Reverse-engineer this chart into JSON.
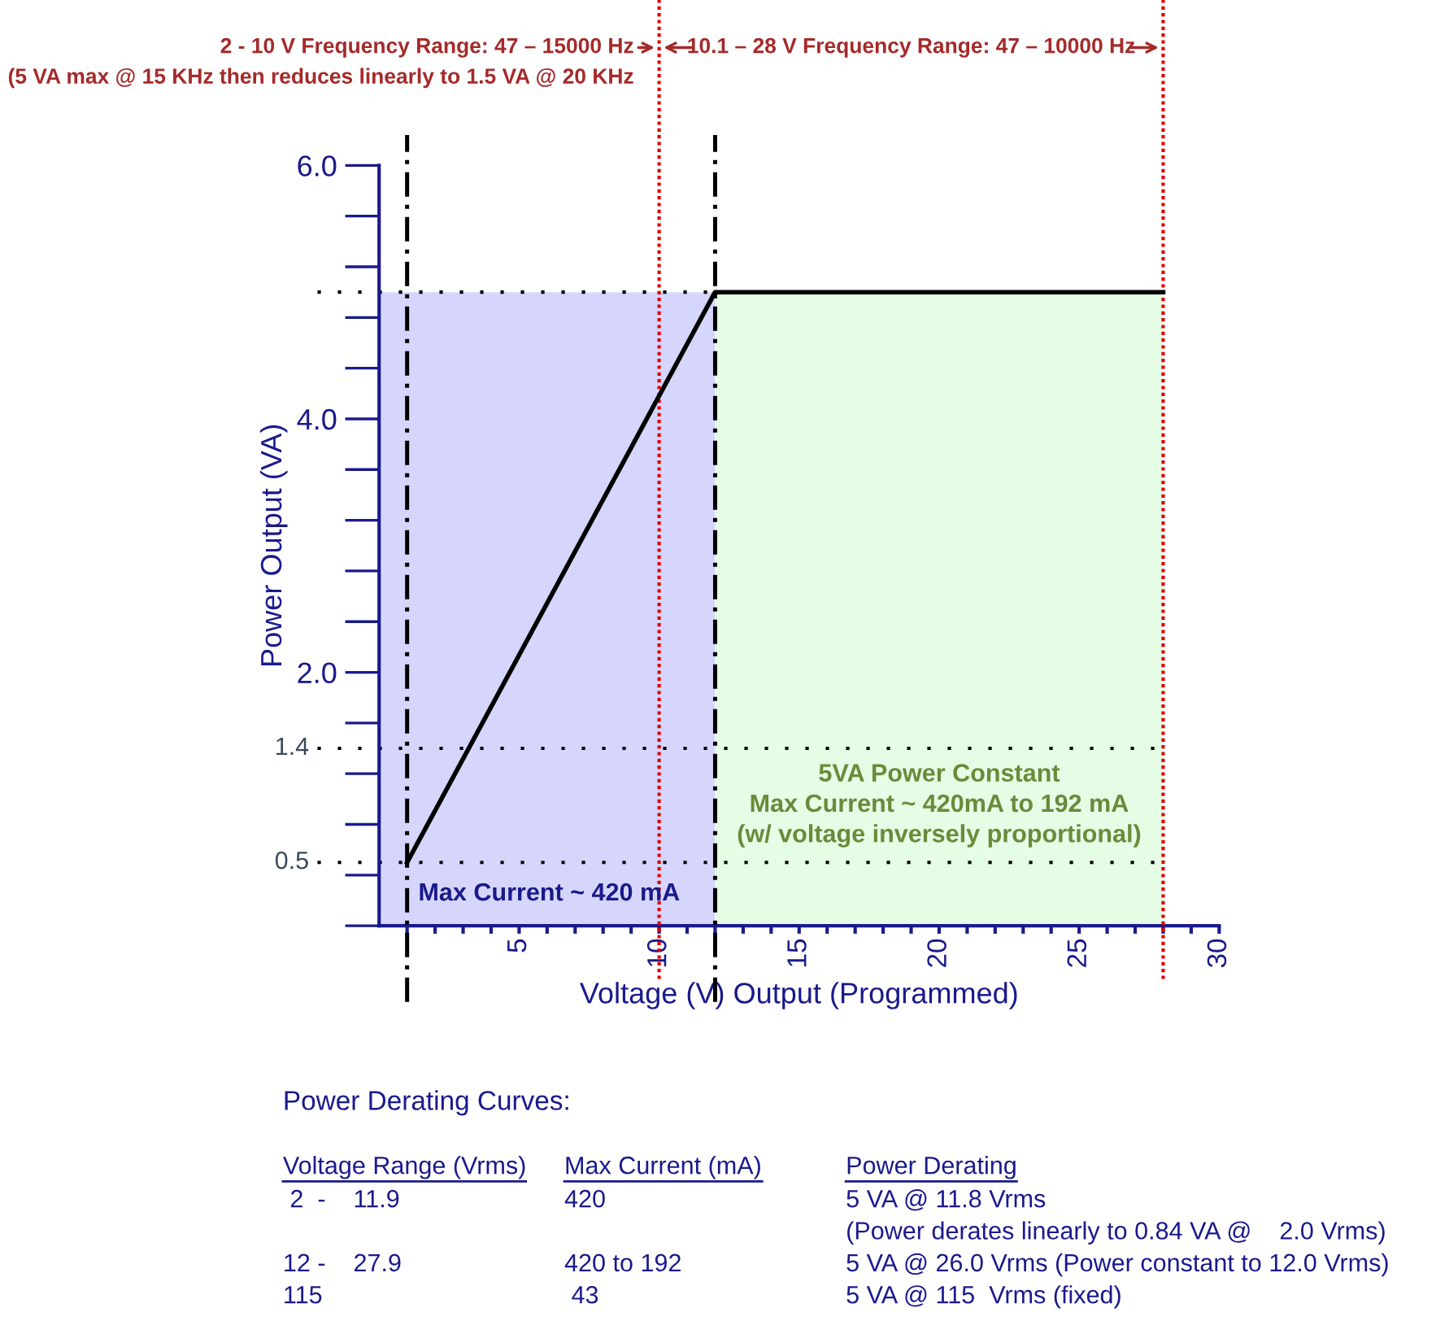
{
  "chart_data": {
    "type": "line",
    "xlabel": "Voltage (V) Output (Programmed)",
    "ylabel": "Power Output (VA)",
    "x": [
      1,
      12,
      28
    ],
    "series": [
      {
        "color": "#000000",
        "values": [
          0.5,
          5.0,
          5.0
        ]
      }
    ],
    "xlim": [
      0,
      30
    ],
    "xticks": [
      {
        "value": 1,
        "label": null
      },
      {
        "value": 2,
        "label": null
      },
      {
        "value": 3,
        "label": null
      },
      {
        "value": 4,
        "label": null
      },
      5,
      {
        "value": 6,
        "label": null
      },
      {
        "value": 7,
        "label": null
      },
      {
        "value": 8,
        "label": null
      },
      {
        "value": 9,
        "label": null
      },
      10,
      {
        "value": 11,
        "label": null
      },
      {
        "value": 12,
        "label": null
      },
      {
        "value": 13,
        "label": null
      },
      {
        "value": 14,
        "label": null
      },
      15,
      {
        "value": 16,
        "label": null
      },
      {
        "value": 17,
        "label": null
      },
      {
        "value": 18,
        "label": null
      },
      {
        "value": 19,
        "label": null
      },
      20,
      {
        "value": 21,
        "label": null
      },
      {
        "value": 22,
        "label": null
      },
      {
        "value": 23,
        "label": null
      },
      {
        "value": 24,
        "label": null
      },
      25,
      {
        "value": 26,
        "label": null
      },
      {
        "value": 27,
        "label": null
      },
      {
        "value": 28,
        "label": null
      },
      {
        "value": 29,
        "label": null
      },
      30
    ],
    "ylim": [
      0,
      6
    ],
    "yticks": [
      {
        "value": 2,
        "label": "2.0"
      },
      {
        "value": 4,
        "label": "4.0"
      },
      {
        "value": 6,
        "label": "6.0"
      }
    ],
    "bands": [
      {
        "axis": "x",
        "from": 0,
        "to": 12,
        "color": "#d6d6fc"
      },
      {
        "axis": "x",
        "from": 12,
        "to": 28,
        "color": "#e5fce5"
      }
    ],
    "ref_lines": [
      {
        "axis": "y",
        "value": 5,
        "color": "#000000",
        "line_style": "dotted"
      },
      {
        "axis": "y",
        "value": 1.4,
        "color": "#000000",
        "line_style": "dotted",
        "label": "1.4"
      },
      {
        "axis": "y",
        "value": 0.5,
        "color": "#000000",
        "line_style": "dotted",
        "label": "0.5"
      },
      {
        "axis": "x",
        "value": 1,
        "color": "#000000",
        "line_style": "dashdot"
      },
      {
        "axis": "x",
        "value": 12,
        "color": "#000000",
        "line_style": "dashdot"
      },
      {
        "axis": "x",
        "value": 10,
        "color": "#e00000",
        "line_style": "dotted"
      },
      {
        "axis": "x",
        "value": 28,
        "color": "#e00000",
        "line_style": "dotted"
      }
    ],
    "annotations": [
      "2 - 10 V Frequency Range: 47 – 15000 Hz",
      "(5 VA max @ 15 KHz then reduces linearly to 1.5 VA @ 20 KHz",
      "10.1 – 28 V Frequency Range: 47 – 10000 Hz",
      "Max Current ~ 420 mA",
      "5VA Power Constant\nMax Current ~ 420mA to 192 mA\n(w/ voltage inversely proportional)",
      "Power Derating Curves:",
      "Voltage Range (Vrms)",
      "Max Current (mA)",
      "Power Derating",
      " 2  -    11.9",
      "420",
      "5 VA @ 11.8 Vrms",
      "(Power derates linearly to 0.84 VA @    2.0 Vrms)",
      "12 -    27.9",
      "420 to 192",
      "5 VA @ 26.0 Vrms (Power constant to 12.0 Vrms)",
      "115",
      " 43",
      "5 VA @ 115  Vrms (fixed)"
    ],
    "grid": false,
    "legend": false,
    "marker": "none",
    "line_style": "solid"
  }
}
